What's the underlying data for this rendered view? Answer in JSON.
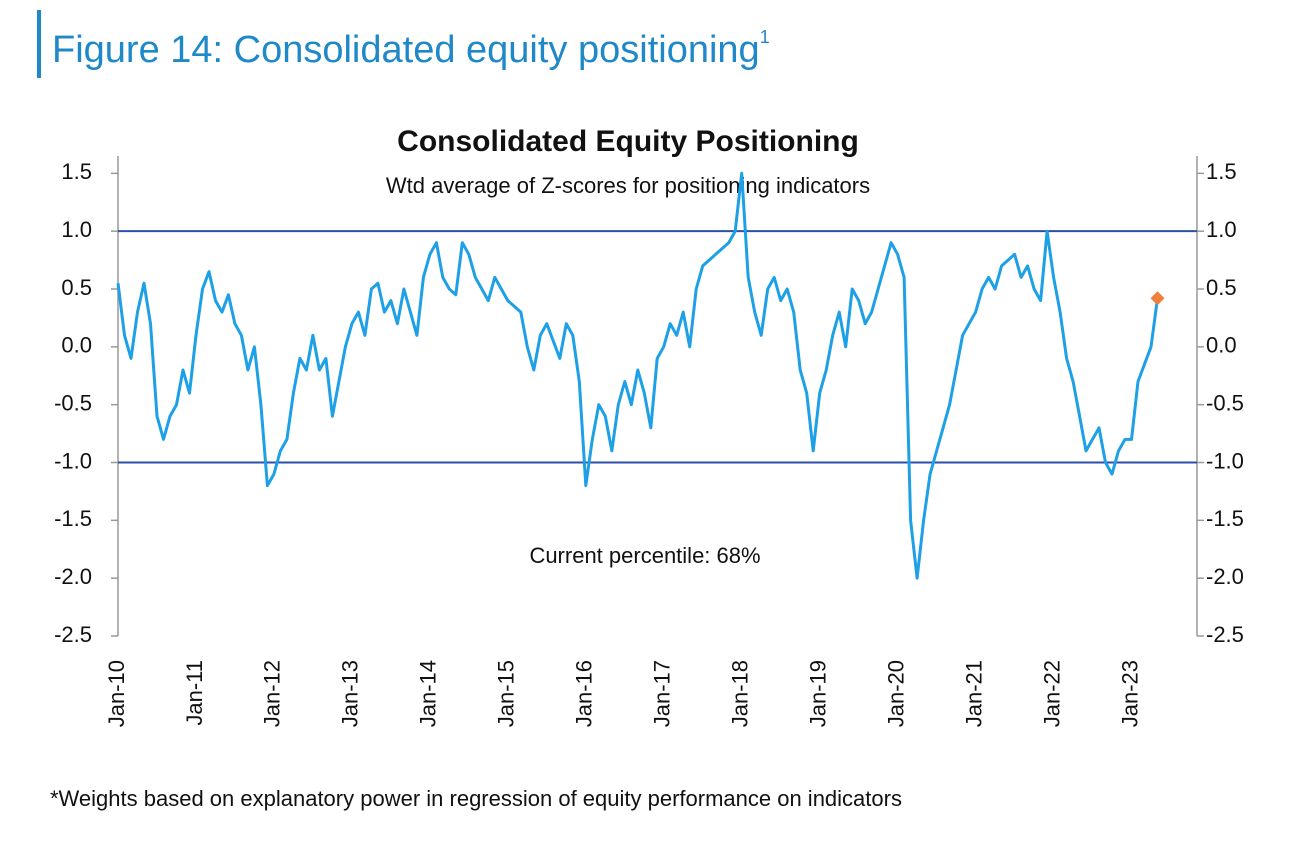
{
  "chart_data": {
    "type": "line",
    "figure_title": "Figure 14: Consolidated equity positioning",
    "figure_title_note": "1",
    "title": "Consolidated Equity Positioning",
    "subtitle": "Wtd average of Z-scores for positioning indicators",
    "annotation": "Current percentile: 68%",
    "footnote": "*Weights based on explanatory power in regression of equity performance on indicators",
    "categories": [
      "Jan-10",
      null,
      null,
      null,
      null,
      null,
      null,
      null,
      null,
      null,
      null,
      null,
      "Jan-11",
      null,
      null,
      null,
      null,
      null,
      null,
      null,
      null,
      null,
      null,
      null,
      "Jan-12",
      null,
      null,
      null,
      null,
      null,
      null,
      null,
      null,
      null,
      null,
      null,
      "Jan-13",
      null,
      null,
      null,
      null,
      null,
      null,
      null,
      null,
      null,
      null,
      null,
      "Jan-14",
      null,
      null,
      null,
      null,
      null,
      null,
      null,
      null,
      null,
      null,
      null,
      "Jan-15",
      null,
      null,
      null,
      null,
      null,
      null,
      null,
      null,
      null,
      null,
      null,
      "Jan-16",
      null,
      null,
      null,
      null,
      null,
      null,
      null,
      null,
      null,
      null,
      null,
      "Jan-17",
      null,
      null,
      null,
      null,
      null,
      null,
      null,
      null,
      null,
      null,
      null,
      "Jan-18",
      null,
      null,
      null,
      null,
      null,
      null,
      null,
      null,
      null,
      null,
      null,
      "Jan-19",
      null,
      null,
      null,
      null,
      null,
      null,
      null,
      null,
      null,
      null,
      null,
      "Jan-20",
      null,
      null,
      null,
      null,
      null,
      null,
      null,
      null,
      null,
      null,
      null,
      "Jan-21",
      null,
      null,
      null,
      null,
      null,
      null,
      null,
      null,
      null,
      null,
      null,
      "Jan-22",
      null,
      null,
      null,
      null,
      null,
      null,
      null,
      null,
      null,
      null,
      null,
      "Jan-23",
      null,
      null,
      null,
      null,
      null,
      null,
      null,
      null,
      null
    ],
    "series": [
      {
        "color": "#1ea0e6",
        "values": [
          0.55,
          0.1,
          -0.1,
          0.3,
          0.55,
          0.2,
          -0.6,
          -0.8,
          -0.6,
          -0.5,
          -0.2,
          -0.4,
          0.1,
          0.5,
          0.65,
          0.4,
          0.3,
          0.45,
          0.2,
          0.1,
          -0.2,
          0.0,
          -0.5,
          -1.2,
          -1.1,
          -0.9,
          -0.8,
          -0.4,
          -0.1,
          -0.2,
          0.1,
          -0.2,
          -0.1,
          -0.6,
          -0.3,
          0.0,
          0.2,
          0.3,
          0.1,
          0.5,
          0.55,
          0.3,
          0.4,
          0.2,
          0.5,
          0.3,
          0.1,
          0.6,
          0.8,
          0.9,
          0.6,
          0.5,
          0.45,
          0.9,
          0.8,
          0.6,
          0.5,
          0.4,
          0.6,
          0.5,
          0.4,
          0.35,
          0.3,
          0.0,
          -0.2,
          0.1,
          0.2,
          0.05,
          -0.1,
          0.2,
          0.1,
          -0.3,
          -1.2,
          -0.8,
          -0.5,
          -0.6,
          -0.9,
          -0.5,
          -0.3,
          -0.5,
          -0.2,
          -0.4,
          -0.7,
          -0.1,
          0.0,
          0.2,
          0.1,
          0.3,
          0.0,
          0.5,
          0.7,
          0.75,
          0.8,
          0.85,
          0.9,
          1.0,
          1.5,
          0.6,
          0.3,
          0.1,
          0.5,
          0.6,
          0.4,
          0.5,
          0.3,
          -0.2,
          -0.4,
          -0.9,
          -0.4,
          -0.2,
          0.1,
          0.3,
          0.0,
          0.5,
          0.4,
          0.2,
          0.3,
          0.5,
          0.7,
          0.9,
          0.8,
          0.6,
          -1.5,
          -2.0,
          -1.5,
          -1.1,
          -0.9,
          -0.7,
          -0.5,
          -0.2,
          0.1,
          0.2,
          0.3,
          0.5,
          0.6,
          0.5,
          0.7,
          0.75,
          0.8,
          0.6,
          0.7,
          0.5,
          0.4,
          1.0,
          0.6,
          0.3,
          -0.1,
          -0.3,
          -0.6,
          -0.9,
          -0.8,
          -0.7,
          -1.0,
          -1.1,
          -0.9,
          -0.8,
          -0.8,
          -0.3,
          -0.15,
          0.0,
          0.42,
          null,
          null,
          null,
          null,
          null
        ]
      }
    ],
    "current_marker_color": "#f07f3c",
    "reference_lines": [
      {
        "value": 1,
        "color": "#2e4fa8"
      },
      {
        "value": -1,
        "color": "#2e4fa8"
      }
    ],
    "ylim": [
      -2.5,
      1.65
    ],
    "yticks": [
      1.5,
      {
        "value": 1,
        "label": "1.0"
      },
      0.5,
      {
        "value": 0,
        "label": "0.0"
      },
      -0.5,
      {
        "value": -1,
        "label": "-1.0"
      },
      -1.5,
      {
        "value": -2,
        "label": "-2.0"
      },
      -2.5
    ]
  }
}
